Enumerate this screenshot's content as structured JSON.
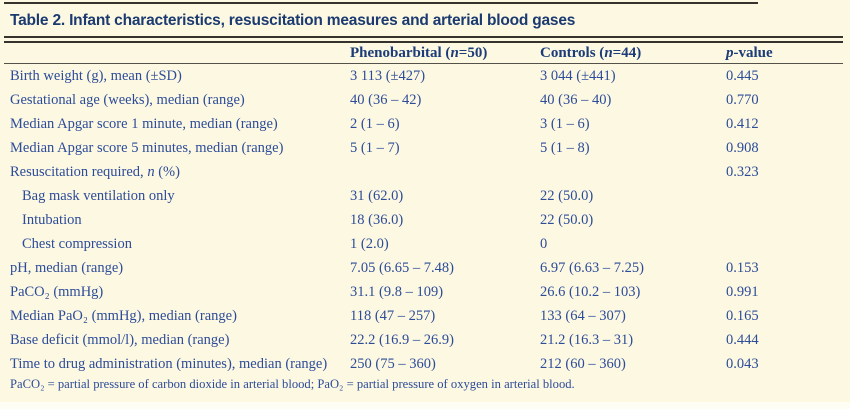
{
  "colors": {
    "background": "#fdf8e2",
    "title_text": "#1a3a70",
    "body_text": "#2c4c99",
    "rule": "#35332c"
  },
  "header": {
    "title": "Table 2. Infant characteristics, resuscitation measures and arterial blood gases"
  },
  "table": {
    "columns": [
      {
        "pre": "Phenobarbital (",
        "it": "n",
        "post": "=50)"
      },
      {
        "pre": "Controls (",
        "it": "n",
        "post": "=44)"
      },
      {
        "pre": "",
        "it": "p",
        "post": "-value"
      }
    ],
    "rows": [
      {
        "label_pre": "Birth weight (g), mean (±SD)",
        "label_it": "",
        "label_post": "",
        "indent": false,
        "pheno": "3 113 (±427)",
        "controls": "3 044 (±441)",
        "p": "0.445"
      },
      {
        "label_pre": "Gestational age (weeks), median (range)",
        "label_it": "",
        "label_post": "",
        "indent": false,
        "pheno": "40 (36 – 42)",
        "controls": "40 (36 – 40)",
        "p": "0.770"
      },
      {
        "label_pre": "Median Apgar score 1 minute, median (range)",
        "label_it": "",
        "label_post": "",
        "indent": false,
        "pheno": "2 (1 – 6)",
        "controls": "3 (1 – 6)",
        "p": "0.412"
      },
      {
        "label_pre": "Median Apgar score 5 minutes, median (range)",
        "label_it": "",
        "label_post": "",
        "indent": false,
        "pheno": "5 (1 – 7)",
        "controls": "5 (1 – 8)",
        "p": "0.908"
      },
      {
        "label_pre": "Resuscitation required, ",
        "label_it": "n",
        "label_post": " (%)",
        "indent": false,
        "pheno": "",
        "controls": "",
        "p": "0.323"
      },
      {
        "label_pre": "Bag mask ventilation only",
        "label_it": "",
        "label_post": "",
        "indent": true,
        "pheno": "31 (62.0)",
        "controls": "22 (50.0)",
        "p": ""
      },
      {
        "label_pre": "Intubation",
        "label_it": "",
        "label_post": "",
        "indent": true,
        "pheno": "18 (36.0)",
        "controls": "22 (50.0)",
        "p": ""
      },
      {
        "label_pre": "Chest compression",
        "label_it": "",
        "label_post": "",
        "indent": true,
        "pheno": "1 (2.0)",
        "controls": "0",
        "p": ""
      },
      {
        "label_pre": "pH, median (range)",
        "label_it": "",
        "label_post": "",
        "indent": false,
        "pheno": "7.05 (6.65 – 7.48)",
        "controls": "6.97 (6.63 – 7.25)",
        "p": "0.153"
      },
      {
        "label_pre": "PaCO₂ (mmHg)",
        "label_it": "",
        "label_post": "",
        "indent": false,
        "pheno": "31.1 (9.8 – 109)",
        "controls": "26.6 (10.2 – 103)",
        "p": "0.991"
      },
      {
        "label_pre": "Median PaO₂ (mmHg), median (range)",
        "label_it": "",
        "label_post": "",
        "indent": false,
        "pheno": "118 (47 – 257)",
        "controls": "133 (64 – 307)",
        "p": "0.165"
      },
      {
        "label_pre": "Base deficit (mmol/l), median (range)",
        "label_it": "",
        "label_post": "",
        "indent": false,
        "pheno": "22.2 (16.9 – 26.9)",
        "controls": "21.2 (16.3 – 31)",
        "p": "0.444"
      },
      {
        "label_pre": "Time to drug administration (minutes), median (range)",
        "label_it": "",
        "label_post": "",
        "indent": false,
        "pheno": "250 (75 – 360)",
        "controls": "212 (60 – 360)",
        "p": "0.043"
      }
    ]
  },
  "footnote": {
    "text": "PaCO₂ = partial pressure of carbon dioxide in arterial blood; PaO₂ = partial pressure of oxygen in arterial blood."
  }
}
